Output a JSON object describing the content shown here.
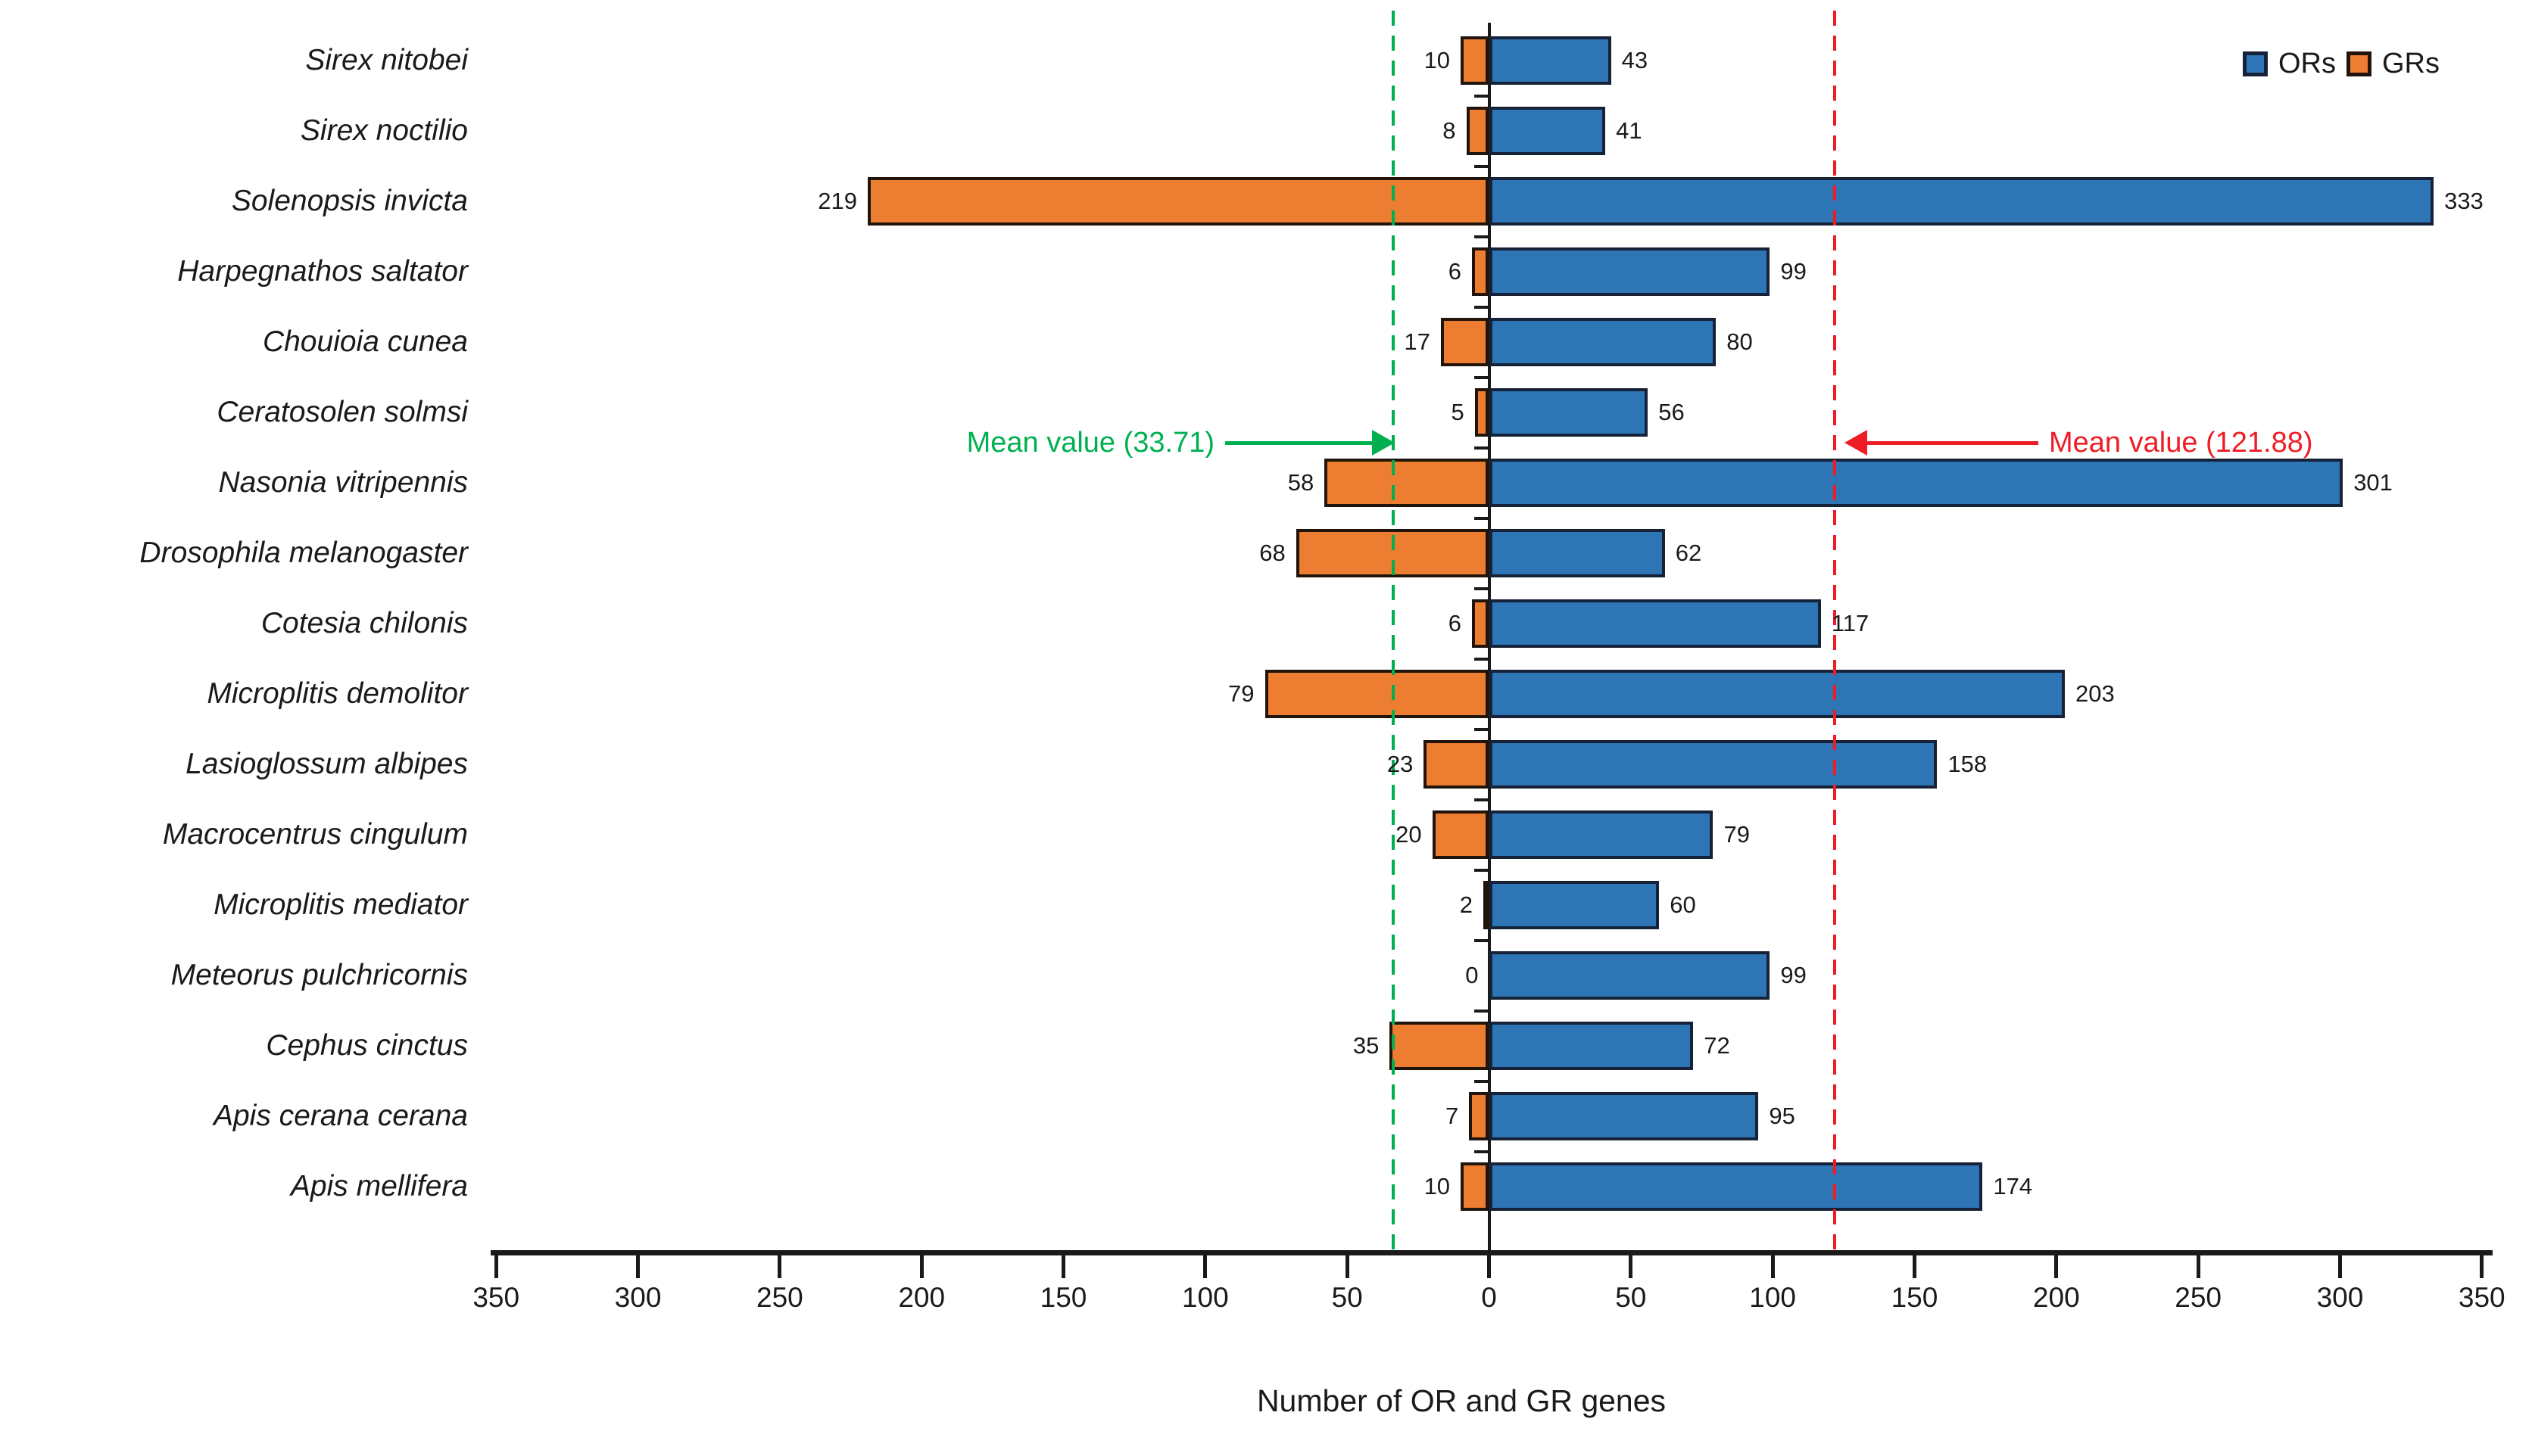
{
  "chart_data": {
    "type": "bar",
    "orientation": "horizontal-diverging",
    "xlabel": "Number of OR and GR genes",
    "categories": [
      "Sirex nitobei",
      "Sirex noctilio",
      "Solenopsis invicta",
      "Harpegnathos saltator",
      "Chouioia cunea",
      "Ceratosolen solmsi",
      "Nasonia vitripennis",
      "Drosophila melanogaster",
      "Cotesia chilonis",
      "Microplitis demolitor",
      "Lasioglossum albipes",
      "Macrocentrus cingulum",
      "Microplitis mediator",
      "Meteorus pulchricornis",
      "Cephus cinctus",
      "Apis cerana cerana",
      "Apis mellifera"
    ],
    "series": [
      {
        "name": "ORs",
        "direction": "right",
        "values": [
          43,
          41,
          333,
          99,
          80,
          56,
          301,
          62,
          117,
          203,
          158,
          79,
          60,
          99,
          72,
          95,
          174
        ]
      },
      {
        "name": "GRs",
        "direction": "left",
        "values": [
          10,
          8,
          219,
          6,
          17,
          5,
          58,
          68,
          6,
          79,
          23,
          20,
          2,
          0,
          35,
          7,
          10
        ]
      }
    ],
    "x_axis": {
      "tick_labels": [
        "350",
        "300",
        "250",
        "200",
        "150",
        "100",
        "50",
        "0",
        "50",
        "100",
        "150",
        "200",
        "250",
        "300",
        "350"
      ],
      "tick_values": [
        -350,
        -300,
        -250,
        -200,
        -150,
        -100,
        -50,
        0,
        50,
        100,
        150,
        200,
        250,
        300,
        350
      ],
      "range": [
        -350,
        350
      ],
      "grid": false
    },
    "mean_lines": [
      {
        "label": "Mean value (33.71)",
        "value": 33.71,
        "side": "left"
      },
      {
        "label": "Mean value (121.88)",
        "value": 121.88,
        "side": "right"
      }
    ],
    "legend": [
      {
        "label": "ORs"
      },
      {
        "label": "GRs"
      }
    ],
    "legend_position": "top-right"
  },
  "colors": {
    "or_fill": "#2E75B6",
    "or_border": "#152238",
    "gr_fill": "#ED7D31",
    "gr_border": "#20140b",
    "green_mean": "#00B050",
    "red_mean": "#EE1C25",
    "axis": "#1a1a1a",
    "text": "#1a1a1a"
  }
}
